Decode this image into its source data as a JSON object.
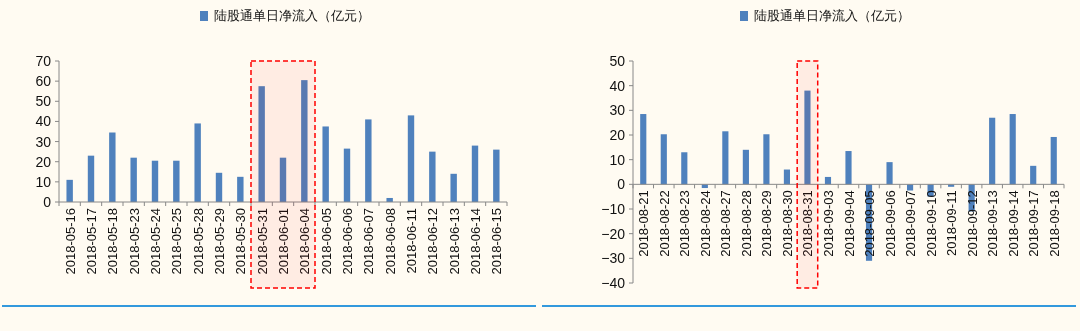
{
  "chart_data": [
    {
      "type": "bar",
      "legend": "top",
      "ylim": [
        0,
        70
      ],
      "yticks": [
        0,
        10,
        20,
        30,
        40,
        50,
        60,
        70
      ],
      "categories": [
        "2018-05-16",
        "2018-05-17",
        "2018-05-18",
        "2018-05-23",
        "2018-05-24",
        "2018-05-25",
        "2018-05-28",
        "2018-05-29",
        "2018-05-30",
        "2018-05-31",
        "2018-06-01",
        "2018-06-04",
        "2018-06-05",
        "2018-06-06",
        "2018-06-07",
        "2018-06-08",
        "2018-06-11",
        "2018-06-12",
        "2018-06-13",
        "2018-06-14",
        "2018-06-15"
      ],
      "series": [
        {
          "name": "陆股通单日净流入（亿元）",
          "color": "#4f81bd",
          "values": [
            11,
            23,
            34.5,
            22,
            20.5,
            20.5,
            39,
            14.5,
            12.5,
            57.5,
            22,
            60.5,
            37.5,
            26.5,
            41,
            2,
            43,
            25,
            14,
            28,
            26
          ]
        }
      ],
      "bands": [
        {
          "axis": "x",
          "from": "2018-05-31",
          "to": "2018-06-04",
          "color": "#ff0000"
        }
      ]
    },
    {
      "type": "bar",
      "legend": "top",
      "ylim": [
        -40,
        50
      ],
      "yticks": [
        -40,
        -30,
        -20,
        -10,
        0,
        10,
        20,
        30,
        40,
        50
      ],
      "categories": [
        "2018-08-21",
        "2018-08-22",
        "2018-08-23",
        "2018-08-24",
        "2018-08-27",
        "2018-08-28",
        "2018-08-29",
        "2018-08-30",
        "2018-08-31",
        "2018-09-03",
        "2018-09-04",
        "2018-09-05",
        "2018-09-06",
        "2018-09-07",
        "2018-09-10",
        "2018-09-11",
        "2018-09-12",
        "2018-09-13",
        "2018-09-14",
        "2018-09-17",
        "2018-09-18"
      ],
      "series": [
        {
          "name": "陆股通单日净流入（亿元）",
          "color": "#4f81bd",
          "values": [
            28.5,
            20.3,
            13,
            -1.5,
            21.5,
            14,
            20.3,
            6,
            38,
            3,
            13.5,
            -31,
            9,
            -2.5,
            -5,
            -1,
            -11,
            27,
            28.5,
            7.5,
            19.2
          ]
        }
      ],
      "bands": [
        {
          "axis": "x",
          "from": "2018-08-31",
          "to": "2018-08-31",
          "color": "#ff0000"
        }
      ]
    }
  ]
}
